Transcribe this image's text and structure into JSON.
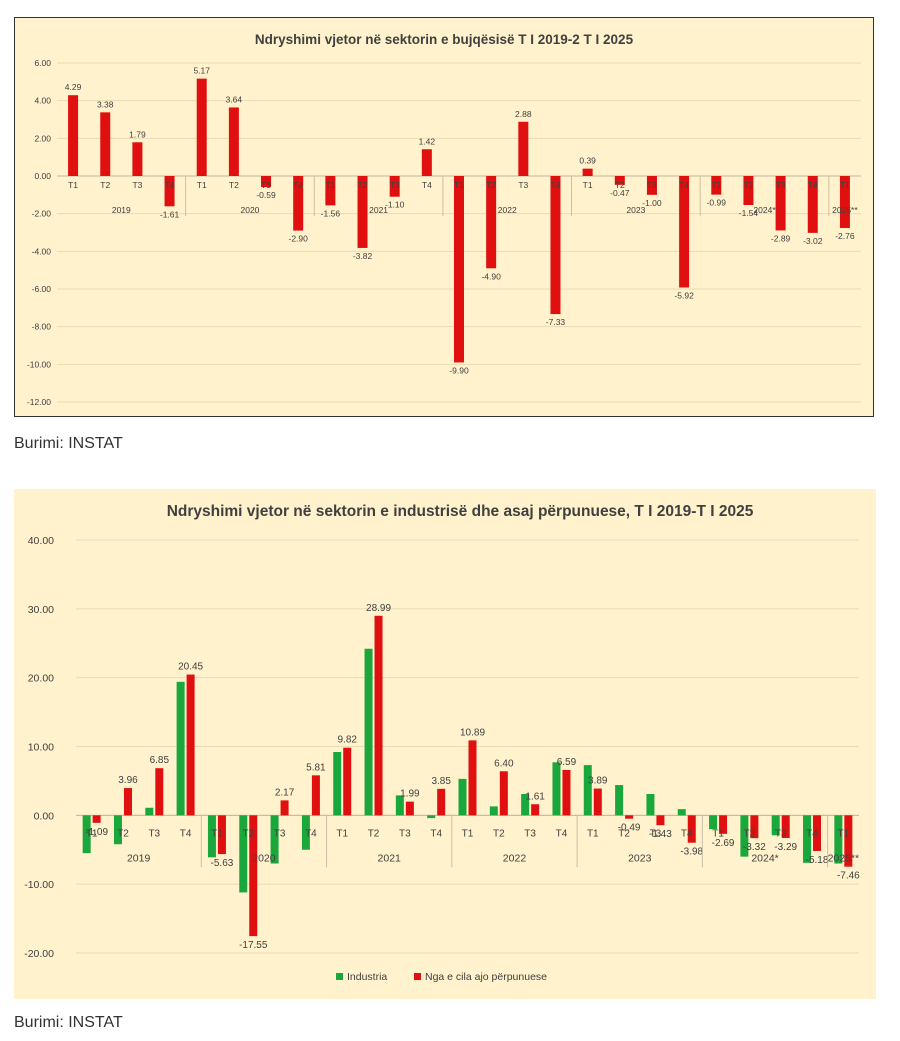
{
  "chart_data": [
    {
      "type": "bar",
      "title": "Ndryshimi vjetor në sektorin e bujqësisë T I 2019-2 T I 2025",
      "ylim": [
        -12,
        6
      ],
      "yticks": [
        "6.00",
        "4.00",
        "2.00",
        "0.00",
        "-2.00",
        "-4.00",
        "-6.00",
        "-8.00",
        "-10.00",
        "-12.00"
      ],
      "grid": true,
      "colors": {
        "bar": "#e01010",
        "grid": "#e8dcb4",
        "text": "#404040"
      },
      "quarter_labels": [
        "T1",
        "T2",
        "T3",
        "T4",
        "T1",
        "T2",
        "T3",
        "T4",
        "T1",
        "T2",
        "T3",
        "T4",
        "T1",
        "T2",
        "T3",
        "T4",
        "T1",
        "T2",
        "T3",
        "T4",
        "T1",
        "T2",
        "T3",
        "T4",
        "T1"
      ],
      "year_labels": [
        "2019",
        "2020",
        "2021",
        "2022",
        "2023",
        "2024*",
        "2025**"
      ],
      "values": [
        4.29,
        3.38,
        1.79,
        -1.61,
        5.17,
        3.64,
        -0.59,
        -2.9,
        -1.56,
        -3.82,
        -1.1,
        1.42,
        -9.9,
        -4.9,
        2.88,
        -7.33,
        0.39,
        -0.47,
        -1.0,
        -5.92,
        -0.99,
        -1.54,
        -2.89,
        -3.02,
        -2.76
      ],
      "value_labels": [
        "4.29",
        "3.38",
        "1.79",
        "-1.61",
        "5.17",
        "3.64",
        "-0.59",
        "-2.90",
        "-1.56",
        "-3.82",
        "-1.10",
        "1.42",
        "-9.90",
        "-4.90",
        "2.88",
        "-7.33",
        "0.39",
        "-0.47",
        "-1.00",
        "-5.92",
        "-0.99",
        "-1.54",
        "-2.89",
        "-3.02",
        "-2.76"
      ]
    },
    {
      "type": "bar",
      "title": "Ndryshimi vjetor në sektorin e industrisë dhe asaj përpunuese, T I 2019-T I 2025",
      "ylim": [
        -20,
        40
      ],
      "yticks": [
        "40.00",
        "30.00",
        "20.00",
        "10.00",
        "0.00",
        "-10.00",
        "-20.00"
      ],
      "grid": true,
      "legend": "bottom",
      "colors": {
        "industria": "#1aa83c",
        "perpunuese": "#e01010",
        "grid": "#e8dcb4",
        "text": "#404040"
      },
      "quarter_labels": [
        "T1",
        "T2",
        "T3",
        "T4",
        "T1",
        "T2",
        "T3",
        "T4",
        "T1",
        "T2",
        "T3",
        "T4",
        "T1",
        "T2",
        "T3",
        "T4",
        "T1",
        "T2",
        "T3",
        "T4",
        "T1",
        "T2",
        "T3",
        "T4",
        "T1"
      ],
      "year_labels": [
        "2019",
        "2020",
        "2021",
        "2022",
        "2023",
        "2024*",
        "2025**"
      ],
      "series": [
        {
          "name": "Industria",
          "values": [
            -5.5,
            -4.2,
            1.1,
            19.4,
            -6.1,
            -11.2,
            -7.0,
            -5.0,
            9.2,
            24.2,
            2.9,
            -0.4,
            5.3,
            1.3,
            3.1,
            7.7,
            7.3,
            4.4,
            3.1,
            0.9,
            -2.0,
            -6.0,
            -2.9,
            -6.9,
            -7.0
          ]
        },
        {
          "name": "Nga e cila ajo përpunuese",
          "values": [
            -1.09,
            3.96,
            6.85,
            20.45,
            -5.63,
            -17.55,
            2.17,
            5.81,
            9.82,
            28.99,
            1.99,
            3.85,
            10.89,
            6.4,
            1.61,
            6.59,
            3.89,
            -0.49,
            -1.43,
            -3.98,
            -2.69,
            -3.32,
            -3.29,
            -5.18,
            -7.46
          ],
          "value_labels": [
            "-1.09",
            "3.96",
            "6.85",
            "20.45",
            "-5.63",
            "-17.55",
            "2.17",
            "5.81",
            "9.82",
            "28.99",
            "1.99",
            "3.85",
            "10.89",
            "6.40",
            "1.61",
            "6.59",
            "3.89",
            "-0.49",
            "-1.43",
            "-3.98",
            "-2.69",
            "-3.32",
            "-3.29",
            "-5.18",
            "-7.46"
          ]
        }
      ]
    }
  ],
  "sources": [
    "Burimi: INSTAT",
    "Burimi: INSTAT"
  ]
}
